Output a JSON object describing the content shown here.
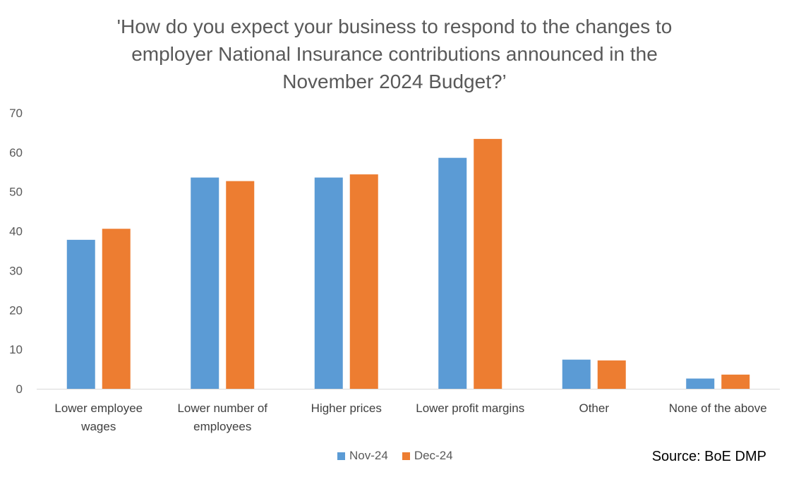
{
  "chart_data": {
    "type": "bar",
    "title_lines": [
      "'How do you expect your business to respond to the changes to",
      "employer National Insurance contributions announced in the",
      "November 2024 Budget?’"
    ],
    "categories": [
      [
        "Lower employee",
        "wages"
      ],
      [
        "Lower number of",
        "employees"
      ],
      [
        "Higher prices"
      ],
      [
        "Lower profit margins"
      ],
      [
        "Other"
      ],
      [
        "None of the above"
      ]
    ],
    "series": [
      {
        "name": "Nov-24",
        "color": "#5B9BD5",
        "values": [
          37.8,
          53.6,
          53.6,
          58.6,
          7.4,
          2.6
        ]
      },
      {
        "name": "Dec-24",
        "color": "#ED7D31",
        "values": [
          40.6,
          52.7,
          54.4,
          63.4,
          7.2,
          3.6
        ]
      }
    ],
    "ylim": [
      0,
      70
    ],
    "yticks": [
      "0",
      "10",
      "20",
      "30",
      "40",
      "50",
      "60",
      "70"
    ],
    "xlabel": "",
    "ylabel": "",
    "grid": false,
    "legend_position": "bottom"
  },
  "source": "Source: BoE DMP"
}
